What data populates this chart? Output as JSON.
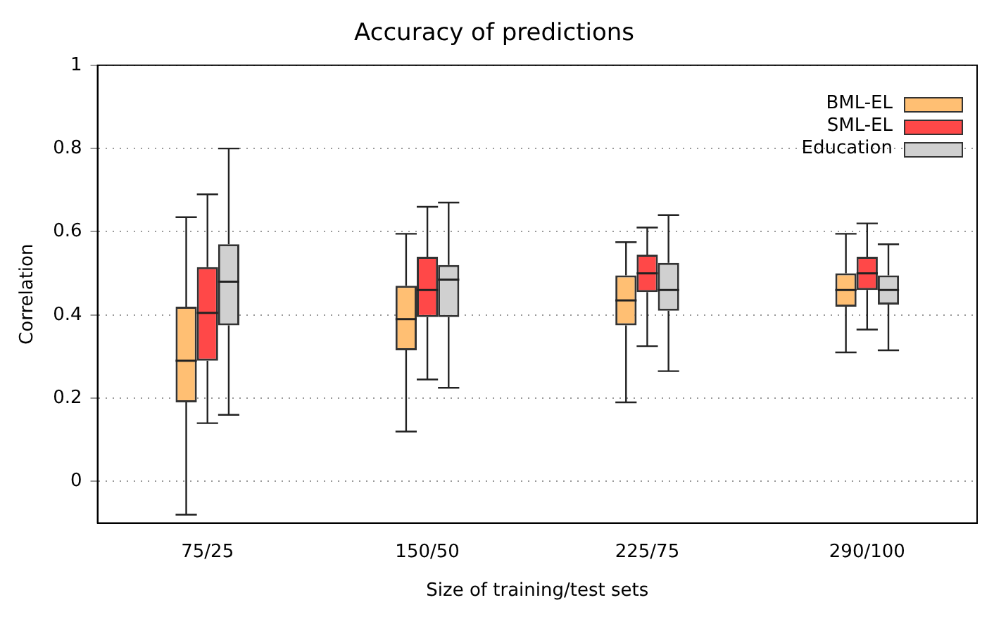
{
  "chart_data": {
    "type": "box",
    "title": "Accuracy of predictions",
    "xlabel": "Size of training/test sets",
    "ylabel": "Correlation",
    "categories": [
      "75/25",
      "150/50",
      "225/75",
      "290/100"
    ],
    "ylim": [
      -0.1,
      1
    ],
    "yticks": [
      0,
      0.2,
      0.4,
      0.6,
      0.8,
      1
    ],
    "grid": "y",
    "legend": "top right",
    "series": [
      {
        "name": "BML-EL",
        "color": "#ffbf73",
        "boxes": [
          {
            "low": -0.08,
            "q1": 0.19,
            "median": 0.29,
            "q3": 0.42,
            "high": 0.635
          },
          {
            "low": 0.12,
            "q1": 0.315,
            "median": 0.39,
            "q3": 0.47,
            "high": 0.595
          },
          {
            "low": 0.19,
            "q1": 0.375,
            "median": 0.435,
            "q3": 0.495,
            "high": 0.575
          },
          {
            "low": 0.31,
            "q1": 0.42,
            "median": 0.46,
            "q3": 0.5,
            "high": 0.595
          }
        ]
      },
      {
        "name": "SML-EL",
        "color": "#ff4848",
        "boxes": [
          {
            "low": 0.14,
            "q1": 0.29,
            "median": 0.405,
            "q3": 0.515,
            "high": 0.69
          },
          {
            "low": 0.245,
            "q1": 0.395,
            "median": 0.46,
            "q3": 0.54,
            "high": 0.66
          },
          {
            "low": 0.325,
            "q1": 0.455,
            "median": 0.5,
            "q3": 0.545,
            "high": 0.61
          },
          {
            "low": 0.365,
            "q1": 0.46,
            "median": 0.5,
            "q3": 0.54,
            "high": 0.62
          }
        ]
      },
      {
        "name": "Education",
        "color": "#d0d0d0",
        "boxes": [
          {
            "low": 0.16,
            "q1": 0.375,
            "median": 0.48,
            "q3": 0.57,
            "high": 0.8
          },
          {
            "low": 0.225,
            "q1": 0.395,
            "median": 0.485,
            "q3": 0.52,
            "high": 0.67
          },
          {
            "low": 0.265,
            "q1": 0.41,
            "median": 0.46,
            "q3": 0.525,
            "high": 0.64
          },
          {
            "low": 0.315,
            "q1": 0.425,
            "median": 0.46,
            "q3": 0.495,
            "high": 0.57
          }
        ]
      }
    ]
  }
}
